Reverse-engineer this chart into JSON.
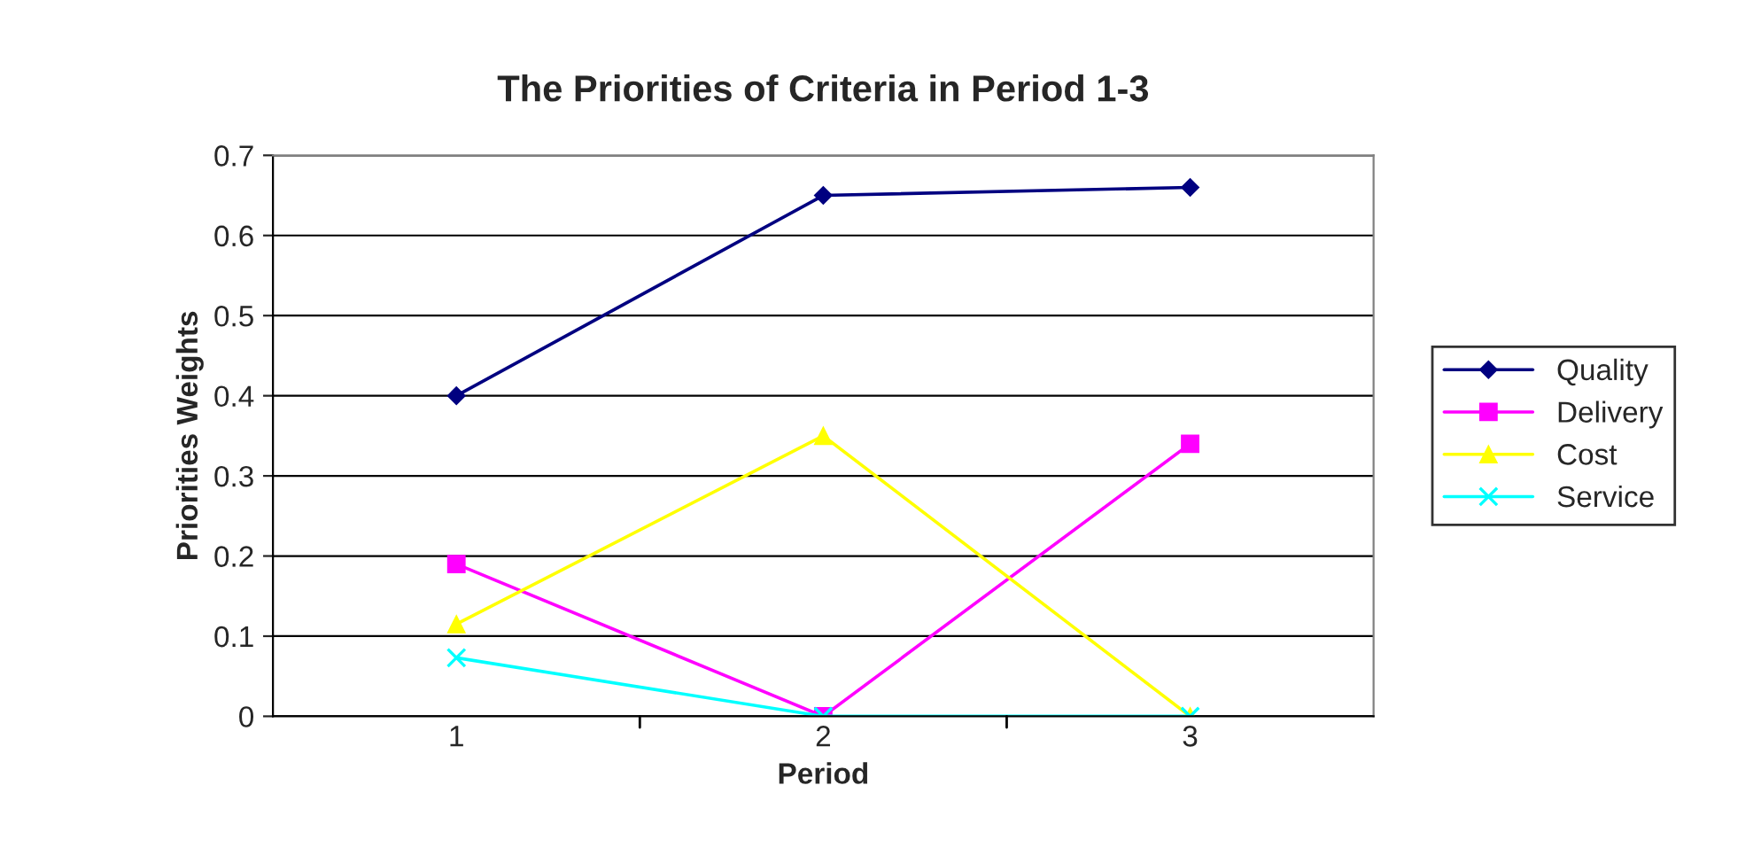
{
  "chart_data": {
    "type": "line",
    "title": "The Priorities of Criteria in Period 1-3",
    "xlabel": "Period",
    "ylabel": "Priorities Weights",
    "categories": [
      "1",
      "2",
      "3"
    ],
    "series": [
      {
        "name": "Quality",
        "color": "#000080",
        "marker": "diamond",
        "values": [
          0.4,
          0.65,
          0.66
        ]
      },
      {
        "name": "Delivery",
        "color": "#ff00ff",
        "marker": "square",
        "values": [
          0.19,
          0,
          0.34
        ]
      },
      {
        "name": "Cost",
        "color": "#ffff00",
        "marker": "triangle",
        "values": [
          0.115,
          0.35,
          0
        ]
      },
      {
        "name": "Service",
        "color": "#00ffff",
        "marker": "cross",
        "values": [
          0.073,
          0,
          0
        ]
      }
    ],
    "ylim": [
      0,
      0.7
    ],
    "yticks": [
      0,
      0.1,
      0.2,
      0.3,
      0.4,
      0.5,
      0.6,
      0.7
    ],
    "grid": "y",
    "legend": "right"
  }
}
